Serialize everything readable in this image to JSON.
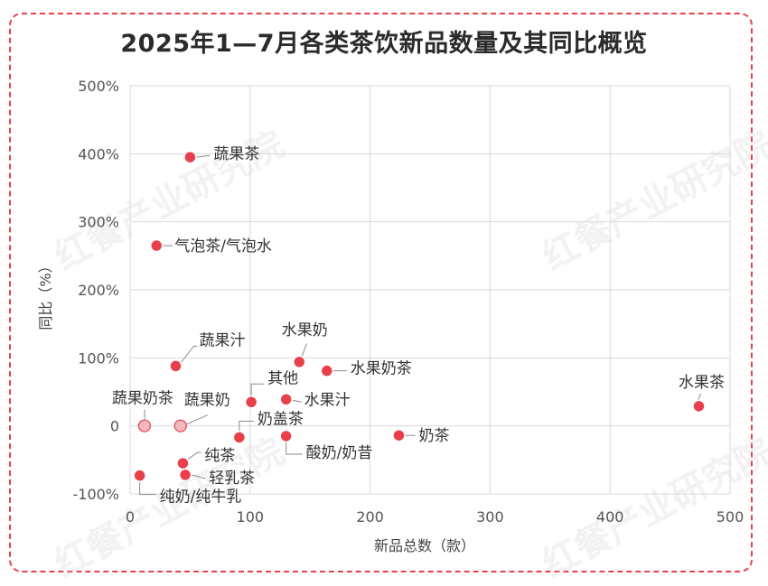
{
  "title": "2025年1—7月各类茶饮新品数量及其同比概览",
  "watermark": "红餐产业研究院",
  "colors": {
    "point": "#e8404a",
    "point_outline": "#ffffff",
    "faded_point": "#f3b9bd",
    "frame": "#e8404a",
    "grid": "#d9d9d9"
  },
  "chart_data": {
    "type": "scatter",
    "xlabel": "新品总数（款）",
    "ylabel": "同比（%）",
    "xlim": [
      0,
      500
    ],
    "ylim": [
      -100,
      500
    ],
    "x_ticks": [
      0,
      100,
      200,
      300,
      400,
      500
    ],
    "x_tick_labels": [
      "0",
      "100",
      "200",
      "300",
      "400",
      "500"
    ],
    "y_ticks": [
      -100,
      0,
      100,
      200,
      300,
      400,
      500
    ],
    "y_tick_labels": [
      "-100%",
      "0",
      "100%",
      "200%",
      "300%",
      "400%",
      "500%"
    ],
    "grid": true,
    "points": [
      {
        "label": "蔬果茶",
        "x": 50,
        "y": 395
      },
      {
        "label": "气泡茶/气泡水",
        "x": 22,
        "y": 265
      },
      {
        "label": "蔬果汁",
        "x": 38,
        "y": 88
      },
      {
        "label": "水果奶",
        "x": 141,
        "y": 94
      },
      {
        "label": "水果奶茶",
        "x": 164,
        "y": 81
      },
      {
        "label": "其他",
        "x": 101,
        "y": 35
      },
      {
        "label": "水果汁",
        "x": 130,
        "y": 39
      },
      {
        "label": "水果茶",
        "x": 474,
        "y": 29
      },
      {
        "label": "蔬果奶茶",
        "x": 12,
        "y": 0,
        "faded": true
      },
      {
        "label": "蔬果奶",
        "x": 42,
        "y": 0,
        "faded": true
      },
      {
        "label": "奶盖茶",
        "x": 91,
        "y": -17
      },
      {
        "label": "酸奶/奶昔",
        "x": 130,
        "y": -15
      },
      {
        "label": "奶茶",
        "x": 224,
        "y": -14
      },
      {
        "label": "纯茶",
        "x": 44,
        "y": -55
      },
      {
        "label": "轻乳茶",
        "x": 46,
        "y": -72
      },
      {
        "label": "纯奶/纯牛乳",
        "x": 8,
        "y": -73
      }
    ]
  }
}
